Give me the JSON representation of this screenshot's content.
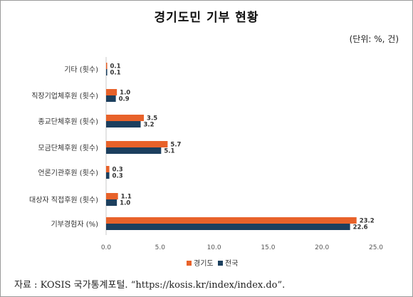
{
  "title": "경기도민 기부 현황",
  "unit_note": "(단위: %, 건)",
  "source_note": "자료 : KOSIS 국가통계포털. “https://kosis.kr/index/index.do”.",
  "chart_data": {
    "type": "bar",
    "orientation": "horizontal",
    "title": "경기도민 기부 현황",
    "categories": [
      "기타 (횟수)",
      "직장기업체후원 (횟수)",
      "종교단체후원 (횟수)",
      "모금단체후원 (횟수)",
      "언론기관후원 (횟수)",
      "대상자 직접후원 (횟수)",
      "기부경험자 (%)"
    ],
    "series": [
      {
        "name": "경기도",
        "color": "#E8622A",
        "values": [
          0.1,
          1.0,
          3.5,
          5.7,
          0.3,
          1.1,
          23.2
        ]
      },
      {
        "name": "전국",
        "color": "#1C3F5E",
        "values": [
          0.1,
          0.9,
          3.2,
          5.1,
          0.3,
          1.0,
          22.6
        ]
      }
    ],
    "xlim": [
      0,
      25
    ],
    "xticks": [
      "0.0",
      "5.0",
      "10.0",
      "15.0",
      "20.0",
      "25.0"
    ],
    "grid": false,
    "legend_position": "bottom"
  }
}
